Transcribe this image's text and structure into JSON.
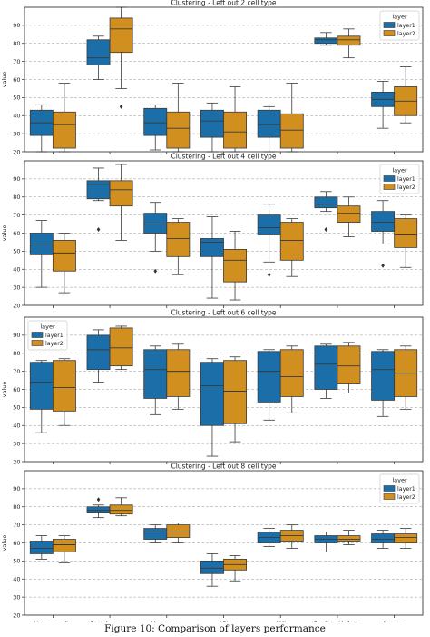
{
  "caption": "Figure 10: Comparison of layers performance",
  "colors": {
    "layer1": "#1b6ea8",
    "layer2": "#d08f1f",
    "grid": "#9a9a9a",
    "edge": "#3a3a3a"
  },
  "chart_data": [
    {
      "type": "box",
      "title": "Clustering - Left out 2 cell type",
      "ylabel": "value",
      "ylim": [
        20,
        100
      ],
      "yticks": [
        20,
        30,
        40,
        50,
        60,
        70,
        80,
        90
      ],
      "grid": "horizontal-dashed",
      "legend": {
        "title": "layer",
        "entries": [
          "layer1",
          "layer2"
        ],
        "placement": "top-right"
      },
      "categories": [
        "Homogeneity",
        "Completeness",
        "V-measure",
        "ARI",
        "AMI",
        "Fowlkes-Mallows",
        "Average"
      ],
      "series": [
        {
          "name": "layer1",
          "boxes": [
            {
              "whislo": 20,
              "q1": 29,
              "med": 36,
              "q3": 43,
              "whishi": 46,
              "fliers": []
            },
            {
              "whislo": 60,
              "q1": 68,
              "med": 72,
              "q3": 82,
              "whishi": 84,
              "fliers": []
            },
            {
              "whislo": 21,
              "q1": 29,
              "med": 36,
              "q3": 44,
              "whishi": 46,
              "fliers": []
            },
            {
              "whislo": 20,
              "q1": 28,
              "med": 37,
              "q3": 43,
              "whishi": 47,
              "fliers": []
            },
            {
              "whislo": 20,
              "q1": 28,
              "med": 35,
              "q3": 43,
              "whishi": 45,
              "fliers": []
            },
            {
              "whislo": 79,
              "q1": 80,
              "med": 82,
              "q3": 83,
              "whishi": 86,
              "fliers": []
            },
            {
              "whislo": 33,
              "q1": 45,
              "med": 49,
              "q3": 53,
              "whishi": 59,
              "fliers": []
            }
          ]
        },
        {
          "name": "layer2",
          "boxes": [
            {
              "whislo": 20,
              "q1": 22,
              "med": 35,
              "q3": 42,
              "whishi": 58,
              "fliers": []
            },
            {
              "whislo": 55,
              "q1": 75,
              "med": 88,
              "q3": 94,
              "whishi": 100,
              "fliers": [
                45
              ]
            },
            {
              "whislo": 20,
              "q1": 22,
              "med": 33,
              "q3": 42,
              "whishi": 58,
              "fliers": []
            },
            {
              "whislo": 20,
              "q1": 22,
              "med": 31,
              "q3": 42,
              "whishi": 56,
              "fliers": []
            },
            {
              "whislo": 20,
              "q1": 22,
              "med": 32,
              "q3": 41,
              "whishi": 58,
              "fliers": []
            },
            {
              "whislo": 72,
              "q1": 79,
              "med": 82,
              "q3": 84,
              "whishi": 88,
              "fliers": []
            },
            {
              "whislo": 36,
              "q1": 40,
              "med": 48,
              "q3": 56,
              "whishi": 67,
              "fliers": []
            }
          ]
        }
      ]
    },
    {
      "type": "box",
      "title": "Clustering - Left out 4 cell type",
      "ylabel": "value",
      "ylim": [
        20,
        100
      ],
      "yticks": [
        20,
        30,
        40,
        50,
        60,
        70,
        80,
        90
      ],
      "grid": "horizontal-dashed",
      "legend": {
        "title": "layer",
        "entries": [
          "layer1",
          "layer2"
        ],
        "placement": "top-right"
      },
      "categories": [
        "Homogeneity",
        "Completeness",
        "V-measure",
        "ARI",
        "AMI",
        "Fowlkes-Mallows",
        "Average"
      ],
      "series": [
        {
          "name": "layer1",
          "boxes": [
            {
              "whislo": 30,
              "q1": 48,
              "med": 54,
              "q3": 60,
              "whishi": 67,
              "fliers": []
            },
            {
              "whislo": 78,
              "q1": 79,
              "med": 87,
              "q3": 89,
              "whishi": 96,
              "fliers": [
                62
              ]
            },
            {
              "whislo": 50,
              "q1": 60,
              "med": 65,
              "q3": 71,
              "whishi": 77,
              "fliers": [
                39
              ]
            },
            {
              "whislo": 24,
              "q1": 47,
              "med": 55,
              "q3": 57,
              "whishi": 69,
              "fliers": []
            },
            {
              "whislo": 44,
              "q1": 59,
              "med": 63,
              "q3": 70,
              "whishi": 76,
              "fliers": [
                37
              ]
            },
            {
              "whislo": 72,
              "q1": 74,
              "med": 76,
              "q3": 80,
              "whishi": 83,
              "fliers": [
                62
              ]
            },
            {
              "whislo": 54,
              "q1": 61,
              "med": 66,
              "q3": 72,
              "whishi": 78,
              "fliers": [
                42
              ]
            }
          ]
        },
        {
          "name": "layer2",
          "boxes": [
            {
              "whislo": 27,
              "q1": 39,
              "med": 49,
              "q3": 56,
              "whishi": 60,
              "fliers": []
            },
            {
              "whislo": 56,
              "q1": 75,
              "med": 84,
              "q3": 89,
              "whishi": 98,
              "fliers": []
            },
            {
              "whislo": 37,
              "q1": 47,
              "med": 57,
              "q3": 66,
              "whishi": 68,
              "fliers": []
            },
            {
              "whislo": 23,
              "q1": 33,
              "med": 45,
              "q3": 51,
              "whishi": 61,
              "fliers": []
            },
            {
              "whislo": 36,
              "q1": 45,
              "med": 56,
              "q3": 66,
              "whishi": 68,
              "fliers": []
            },
            {
              "whislo": 58,
              "q1": 66,
              "med": 71,
              "q3": 75,
              "whishi": 80,
              "fliers": []
            },
            {
              "whislo": 41,
              "q1": 52,
              "med": 59,
              "q3": 68,
              "whishi": 70,
              "fliers": []
            }
          ]
        }
      ]
    },
    {
      "type": "box",
      "title": "Clustering - Left out 6 cell type",
      "ylabel": "value",
      "ylim": [
        20,
        100
      ],
      "yticks": [
        20,
        30,
        40,
        50,
        60,
        70,
        80,
        90
      ],
      "grid": "horizontal-dashed",
      "legend": {
        "title": "layer",
        "entries": [
          "layer1",
          "layer2"
        ],
        "placement": "top-left"
      },
      "categories": [
        "Homogeneity",
        "Completeness",
        "V-measure",
        "ARI",
        "AMI",
        "Fowlkes-Mallows",
        "Average"
      ],
      "series": [
        {
          "name": "layer1",
          "boxes": [
            {
              "whislo": 36,
              "q1": 49,
              "med": 64,
              "q3": 75,
              "whishi": 76,
              "fliers": []
            },
            {
              "whislo": 64,
              "q1": 71,
              "med": 82,
              "q3": 90,
              "whishi": 93,
              "fliers": []
            },
            {
              "whislo": 46,
              "q1": 55,
              "med": 71,
              "q3": 82,
              "whishi": 84,
              "fliers": []
            },
            {
              "whislo": 23,
              "q1": 40,
              "med": 62,
              "q3": 75,
              "whishi": 77,
              "fliers": []
            },
            {
              "whislo": 43,
              "q1": 53,
              "med": 70,
              "q3": 81,
              "whishi": 82,
              "fliers": []
            },
            {
              "whislo": 55,
              "q1": 60,
              "med": 74,
              "q3": 84,
              "whishi": 85,
              "fliers": []
            },
            {
              "whislo": 45,
              "q1": 54,
              "med": 71,
              "q3": 81,
              "whishi": 82,
              "fliers": []
            }
          ]
        },
        {
          "name": "layer2",
          "boxes": [
            {
              "whislo": 40,
              "q1": 48,
              "med": 61,
              "q3": 76,
              "whishi": 77,
              "fliers": []
            },
            {
              "whislo": 71,
              "q1": 73,
              "med": 83,
              "q3": 94,
              "whishi": 95,
              "fliers": []
            },
            {
              "whislo": 49,
              "q1": 56,
              "med": 70,
              "q3": 82,
              "whishi": 85,
              "fliers": []
            },
            {
              "whislo": 31,
              "q1": 41,
              "med": 59,
              "q3": 76,
              "whishi": 78,
              "fliers": []
            },
            {
              "whislo": 47,
              "q1": 56,
              "med": 67,
              "q3": 82,
              "whishi": 84,
              "fliers": []
            },
            {
              "whislo": 58,
              "q1": 63,
              "med": 73,
              "q3": 84,
              "whishi": 86,
              "fliers": []
            },
            {
              "whislo": 49,
              "q1": 56,
              "med": 69,
              "q3": 82,
              "whishi": 84,
              "fliers": []
            }
          ]
        }
      ]
    },
    {
      "type": "box",
      "title": "Clustering - Left out 8 cell type",
      "ylabel": "value",
      "ylim": [
        20,
        100
      ],
      "yticks": [
        20,
        30,
        40,
        50,
        60,
        70,
        80,
        90
      ],
      "grid": "horizontal-dashed",
      "legend": {
        "title": "layer",
        "entries": [
          "layer1",
          "layer2"
        ],
        "placement": "top-right"
      },
      "categories": [
        "Homogeneity",
        "Completeness",
        "V-measure",
        "ARI",
        "AMI",
        "Fowlkes-Mallows",
        "Average"
      ],
      "series": [
        {
          "name": "layer1",
          "boxes": [
            {
              "whislo": 51,
              "q1": 54,
              "med": 57,
              "q3": 61,
              "whishi": 64,
              "fliers": []
            },
            {
              "whislo": 74,
              "q1": 77,
              "med": 78,
              "q3": 80,
              "whishi": 81,
              "fliers": [
                84
              ]
            },
            {
              "whislo": 60,
              "q1": 62,
              "med": 66,
              "q3": 68,
              "whishi": 70,
              "fliers": []
            },
            {
              "whislo": 36,
              "q1": 43,
              "med": 46,
              "q3": 50,
              "whishi": 54,
              "fliers": []
            },
            {
              "whislo": 58,
              "q1": 60,
              "med": 63,
              "q3": 66,
              "whishi": 68,
              "fliers": []
            },
            {
              "whislo": 55,
              "q1": 60,
              "med": 62,
              "q3": 64,
              "whishi": 66,
              "fliers": []
            },
            {
              "whislo": 57,
              "q1": 60,
              "med": 62,
              "q3": 65,
              "whishi": 67,
              "fliers": []
            }
          ]
        },
        {
          "name": "layer2",
          "boxes": [
            {
              "whislo": 49,
              "q1": 55,
              "med": 59,
              "q3": 62,
              "whishi": 64,
              "fliers": []
            },
            {
              "whislo": 75,
              "q1": 76,
              "med": 78,
              "q3": 81,
              "whishi": 85,
              "fliers": []
            },
            {
              "whislo": 60,
              "q1": 63,
              "med": 66,
              "q3": 70,
              "whishi": 71,
              "fliers": []
            },
            {
              "whislo": 39,
              "q1": 45,
              "med": 48,
              "q3": 51,
              "whishi": 53,
              "fliers": []
            },
            {
              "whislo": 57,
              "q1": 61,
              "med": 64,
              "q3": 67,
              "whishi": 70,
              "fliers": []
            },
            {
              "whislo": 59,
              "q1": 61,
              "med": 62,
              "q3": 64,
              "whishi": 67,
              "fliers": []
            },
            {
              "whislo": 57,
              "q1": 60,
              "med": 63,
              "q3": 65,
              "whishi": 68,
              "fliers": []
            }
          ]
        }
      ]
    }
  ]
}
